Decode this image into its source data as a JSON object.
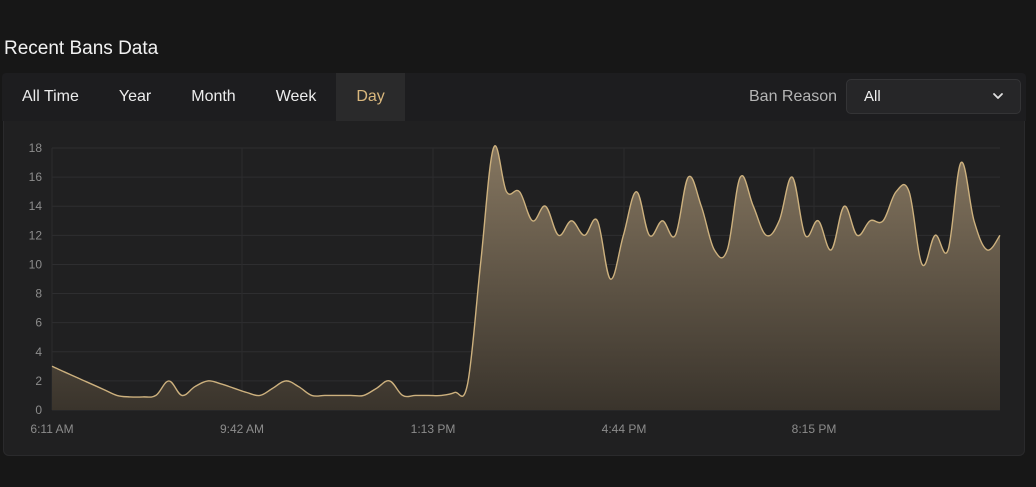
{
  "header": {
    "title": "Recent Bans Data"
  },
  "tabs": [
    {
      "label": "All Time",
      "active": false
    },
    {
      "label": "Year",
      "active": false
    },
    {
      "label": "Month",
      "active": false
    },
    {
      "label": "Week",
      "active": false
    },
    {
      "label": "Day",
      "active": true
    }
  ],
  "filter": {
    "label": "Ban Reason",
    "selected": "All",
    "icon": "chevron-down-icon"
  },
  "colors": {
    "accent": "#d9b77d",
    "line": "#cdb17e",
    "area_top": "#857660",
    "area_bottom": "#3a342c"
  },
  "chart_data": {
    "type": "area",
    "title": "",
    "xlabel": "",
    "ylabel": "",
    "ylim": [
      0,
      18
    ],
    "y_ticks": [
      0,
      2,
      4,
      6,
      8,
      10,
      12,
      14,
      16,
      18
    ],
    "x_ticks": [
      "6:11 AM",
      "9:42 AM",
      "1:13 PM",
      "4:44 PM",
      "8:15 PM"
    ],
    "grid": true,
    "series": [
      {
        "values": [
          3,
          2.6,
          2.2,
          1.8,
          1.4,
          1,
          0.9,
          0.9,
          1,
          2,
          1,
          1.6,
          2,
          1.8,
          1.5,
          1.2,
          1,
          1.5,
          2,
          1.6,
          1,
          1,
          1,
          1,
          1,
          1.5,
          2,
          1,
          1,
          1,
          1,
          1.2,
          1.8,
          10,
          18,
          15,
          15,
          13,
          14,
          12,
          13,
          12,
          13,
          9,
          12,
          15,
          12,
          13,
          12,
          16,
          14,
          11,
          11,
          16,
          14,
          12,
          13,
          16,
          12,
          13,
          11,
          14,
          12,
          13,
          13,
          15,
          15,
          10,
          12,
          11,
          17,
          13,
          11,
          12
        ]
      }
    ]
  }
}
